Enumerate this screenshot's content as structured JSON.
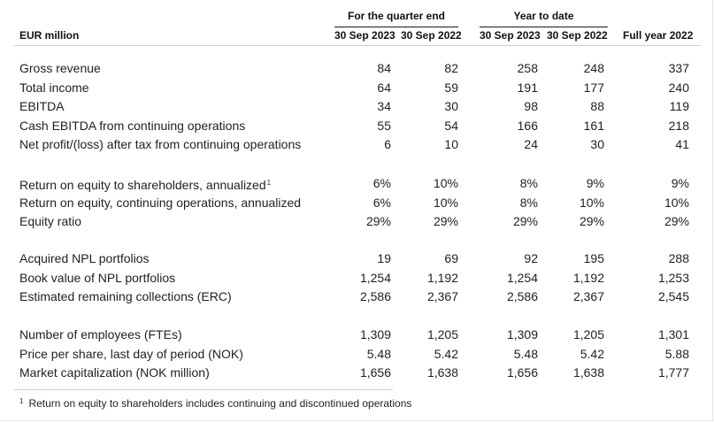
{
  "header": {
    "unit_label": "EUR million",
    "group_quarter": "For the quarter end",
    "group_ytd": "Year to date",
    "columns": [
      "30 Sep 2023",
      "30 Sep 2022",
      "30 Sep 2023",
      "30 Sep 2022",
      "Full year 2022"
    ]
  },
  "sections": [
    {
      "rows": [
        {
          "label": "Gross revenue",
          "values": [
            "84",
            "82",
            "258",
            "248",
            "337"
          ]
        },
        {
          "label": "Total income",
          "values": [
            "64",
            "59",
            "191",
            "177",
            "240"
          ]
        },
        {
          "label": "EBITDA",
          "values": [
            "34",
            "30",
            "98",
            "88",
            "119"
          ]
        },
        {
          "label": "Cash EBITDA from continuing operations",
          "values": [
            "55",
            "54",
            "166",
            "161",
            "218"
          ]
        },
        {
          "label": "Net profit/(loss) after tax from continuing operations",
          "values": [
            "6",
            "10",
            "24",
            "30",
            "41"
          ]
        }
      ]
    },
    {
      "rows": [
        {
          "label": "Return on equity to shareholders, annualized",
          "sup": "1",
          "values": [
            "6%",
            "10%",
            "8%",
            "9%",
            "9%"
          ]
        },
        {
          "label": "Return on equity, continuing operations, annualized",
          "values": [
            "6%",
            "10%",
            "8%",
            "10%",
            "10%"
          ]
        },
        {
          "label": "Equity ratio",
          "values": [
            "29%",
            "29%",
            "29%",
            "29%",
            "29%"
          ]
        }
      ]
    },
    {
      "rows": [
        {
          "label": "Acquired NPL portfolios",
          "values": [
            "19",
            "69",
            "92",
            "195",
            "288"
          ]
        },
        {
          "label": "Book value of NPL portfolios",
          "values": [
            "1,254",
            "1,192",
            "1,254",
            "1,192",
            "1,253"
          ]
        },
        {
          "label": "Estimated remaining collections (ERC)",
          "values": [
            "2,586",
            "2,367",
            "2,586",
            "2,367",
            "2,545"
          ]
        }
      ]
    },
    {
      "rows": [
        {
          "label": "Number of employees (FTEs)",
          "values": [
            "1,309",
            "1,205",
            "1,309",
            "1,205",
            "1,301"
          ]
        },
        {
          "label": "Price per share, last day of period (NOK)",
          "values": [
            "5.48",
            "5.42",
            "5.48",
            "5.42",
            "5.88"
          ]
        },
        {
          "label": "Market capitalization (NOK million)",
          "values": [
            "1,656",
            "1,638",
            "1,656",
            "1,638",
            "1,777"
          ]
        }
      ]
    }
  ],
  "footnote": {
    "marker": "1",
    "text": "Return on equity to shareholders includes continuing and discontinued operations"
  }
}
